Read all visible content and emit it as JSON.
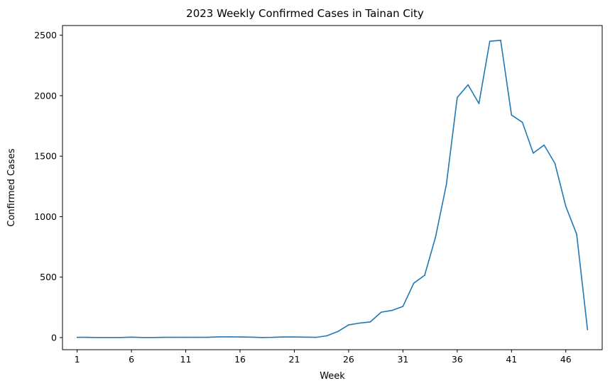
{
  "chart_data": {
    "type": "line",
    "title": "2023 Weekly Confirmed Cases in Tainan City",
    "xlabel": "Week",
    "ylabel": "Confirmed Cases",
    "xlim": [
      -0.35,
      49.35
    ],
    "ylim": [
      -100,
      2580
    ],
    "xticks": [
      1,
      6,
      11,
      16,
      21,
      26,
      31,
      36,
      41,
      46
    ],
    "yticks": [
      0,
      500,
      1000,
      1500,
      2000,
      2500
    ],
    "grid": false,
    "color": "#1f77b4",
    "series": [
      {
        "x": [
          1,
          2,
          3,
          4,
          5,
          6,
          7,
          8,
          9,
          10,
          11,
          12,
          13,
          14,
          15,
          16,
          17,
          18,
          19,
          20,
          21,
          22,
          23,
          24,
          25,
          26,
          27,
          28,
          29,
          30,
          31,
          32,
          33,
          34,
          35,
          36,
          37,
          38,
          39,
          40,
          41,
          42,
          43,
          44,
          45,
          46,
          47,
          48
        ],
        "values": [
          2,
          2,
          1,
          1,
          1,
          4,
          1,
          1,
          2,
          2,
          2,
          2,
          2,
          6,
          6,
          5,
          4,
          1,
          2,
          5,
          5,
          4,
          2,
          15,
          50,
          105,
          120,
          130,
          210,
          225,
          258,
          450,
          515,
          830,
          1265,
          1985,
          2090,
          1935,
          2450,
          2458,
          1840,
          1780,
          1525,
          1592,
          1440,
          1085,
          855,
          65
        ]
      }
    ]
  }
}
